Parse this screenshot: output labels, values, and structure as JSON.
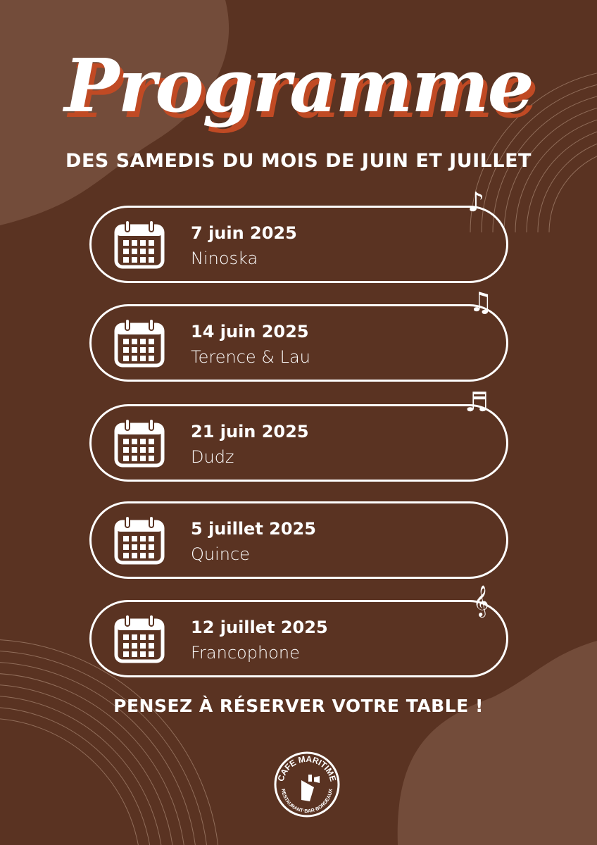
{
  "poster": {
    "title": "Programme",
    "subtitle": "DES SAMEDIS DU MOIS DE JUIN ET JUILLET",
    "events": [
      {
        "date": "7 juin 2025",
        "artist": "Ninoska",
        "note": "♪"
      },
      {
        "date": "14 juin 2025",
        "artist": "Terence & Lau",
        "note": "♫"
      },
      {
        "date": "21 juin 2025",
        "artist": "Dudz",
        "note": "♬"
      },
      {
        "date": "5 juillet 2025",
        "artist": "Quince",
        "note": ""
      },
      {
        "date": "12 juillet 2025",
        "artist": "Francophone",
        "note": "𝄞"
      }
    ],
    "call_to_action": "PENSEZ À RÉSERVER VOTRE TABLE !",
    "logo": {
      "name": "CAFE MARITIME",
      "tagline": "RESTAURANT·BAR·BORDEAUX"
    }
  },
  "colors": {
    "background": "#5a3322",
    "blob": "#734c3a",
    "title_shadow": "#c04a24",
    "text": "#ffffff"
  }
}
